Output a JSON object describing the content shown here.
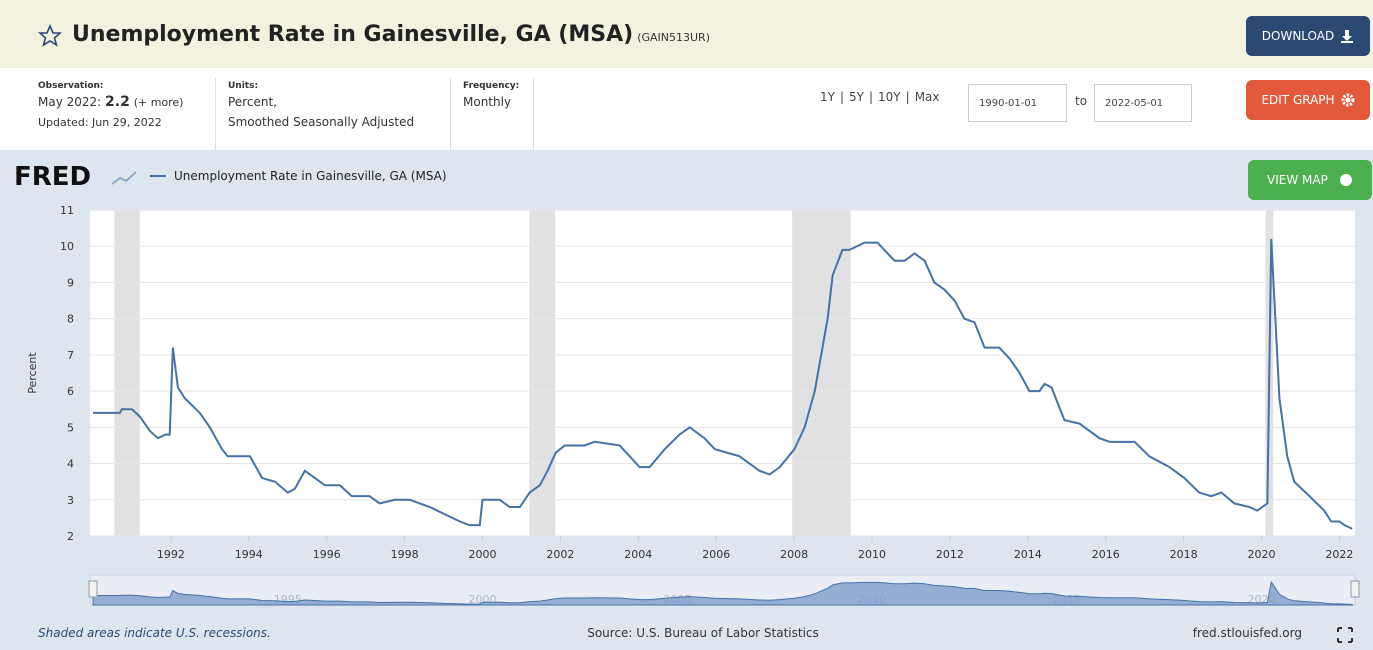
{
  "header": {
    "title": "Unemployment Rate in Gainesville, GA (MSA)",
    "series_id": "(GAIN513UR)",
    "download": "DOWNLOAD"
  },
  "meta": {
    "observation_label": "Observation:",
    "observation_date": "May 2022:",
    "observation_value": "2.2",
    "more": "(+ more)",
    "updated": "Updated: Jun 29, 2022",
    "units_label": "Units:",
    "units": "Percent,",
    "units2": "Smoothed Seasonally Adjusted",
    "frequency_label": "Frequency:",
    "frequency": "Monthly"
  },
  "range": {
    "options": [
      "1Y",
      "5Y",
      "10Y",
      "Max"
    ],
    "separator": "|",
    "start": "1990-01-01",
    "to": "to",
    "end": "2022-05-01"
  },
  "buttons": {
    "edit": "EDIT GRAPH",
    "view_map": "VIEW MAP"
  },
  "logo": "FRED",
  "chart_data": {
    "type": "line",
    "ylabel": "Percent",
    "x": [
      1990.0,
      1990.69,
      1990.74,
      1991.0,
      1991.2,
      1991.46,
      1991.67,
      1991.85,
      1991.97,
      1992.05,
      1992.18,
      1992.36,
      1992.74,
      1993.0,
      1993.31,
      1993.46,
      1994.03,
      1994.34,
      1994.67,
      1995.0,
      1995.18,
      1995.44,
      1995.7,
      1995.95,
      1996.34,
      1996.64,
      1997.1,
      1997.36,
      1997.75,
      1998.13,
      1998.65,
      1999.03,
      1999.42,
      1999.67,
      1999.93,
      2000.0,
      2000.44,
      2000.7,
      2000.96,
      2001.21,
      2001.47,
      2001.67,
      2001.88,
      2002.11,
      2002.62,
      2002.88,
      2003.52,
      2003.78,
      2004.03,
      2004.29,
      2004.68,
      2005.06,
      2005.32,
      2005.7,
      2005.96,
      2006.6,
      2007.11,
      2007.37,
      2007.63,
      2008.01,
      2008.27,
      2008.53,
      2008.86,
      2008.99,
      2009.24,
      2009.42,
      2009.81,
      2010.14,
      2010.4,
      2010.58,
      2010.84,
      2011.09,
      2011.35,
      2011.6,
      2011.86,
      2012.12,
      2012.37,
      2012.63,
      2012.89,
      2013.27,
      2013.53,
      2013.79,
      2014.04,
      2014.3,
      2014.43,
      2014.61,
      2014.94,
      2015.33,
      2015.84,
      2016.1,
      2016.74,
      2017.12,
      2017.64,
      2018.02,
      2018.4,
      2018.71,
      2018.97,
      2019.3,
      2019.69,
      2019.89,
      2020.15,
      2020.25,
      2020.46,
      2020.66,
      2020.84,
      2021.23,
      2021.61,
      2021.79,
      2022.0,
      2022.13,
      2022.33
    ],
    "series": [
      {
        "name": "Unemployment Rate in Gainesville, GA (MSA)",
        "color": "#4572a7",
        "values": [
          5.4,
          5.4,
          5.5,
          5.5,
          5.3,
          4.9,
          4.7,
          4.8,
          4.8,
          7.2,
          6.1,
          5.8,
          5.4,
          5.0,
          4.4,
          4.2,
          4.2,
          3.6,
          3.5,
          3.2,
          3.3,
          3.8,
          3.6,
          3.4,
          3.4,
          3.1,
          3.1,
          2.9,
          3.0,
          3.0,
          2.8,
          2.6,
          2.4,
          2.3,
          2.3,
          3.0,
          3.0,
          2.8,
          2.8,
          3.2,
          3.4,
          3.8,
          4.3,
          4.5,
          4.5,
          4.6,
          4.5,
          4.2,
          3.9,
          3.9,
          4.4,
          4.8,
          5.0,
          4.7,
          4.4,
          4.2,
          3.8,
          3.7,
          3.9,
          4.4,
          5.0,
          6.0,
          8.0,
          9.2,
          9.9,
          9.9,
          10.1,
          10.1,
          9.8,
          9.6,
          9.6,
          9.8,
          9.6,
          9.0,
          8.8,
          8.5,
          8.0,
          7.9,
          7.2,
          7.2,
          6.9,
          6.5,
          6.0,
          6.0,
          6.2,
          6.1,
          5.2,
          5.1,
          4.7,
          4.6,
          4.6,
          4.2,
          3.9,
          3.6,
          3.2,
          3.1,
          3.2,
          2.9,
          2.8,
          2.7,
          2.9,
          10.2,
          5.8,
          4.2,
          3.5,
          3.1,
          2.7,
          2.4,
          2.4,
          2.3,
          2.2
        ]
      }
    ],
    "recessions": [
      [
        1990.55,
        1991.2
      ],
      [
        2001.2,
        2001.87
      ],
      [
        2007.95,
        2009.45
      ],
      [
        2020.1,
        2020.3
      ]
    ],
    "xlim": [
      1990,
      2022.4
    ],
    "ylim": [
      2,
      11
    ],
    "xticks": [
      1992,
      1994,
      1996,
      1998,
      2000,
      2002,
      2004,
      2006,
      2008,
      2010,
      2012,
      2014,
      2016,
      2018,
      2020,
      2022
    ],
    "yticks": [
      2,
      3,
      4,
      5,
      6,
      7,
      8,
      9,
      10,
      11
    ],
    "navigator_ticks": [
      1995,
      2000,
      2005,
      2010,
      2015,
      2020
    ],
    "grid": true
  },
  "footer": {
    "note": "Shaded areas indicate U.S. recessions.",
    "source": "Source: U.S. Bureau of Labor Statistics",
    "site": "fred.stlouisfed.org"
  }
}
